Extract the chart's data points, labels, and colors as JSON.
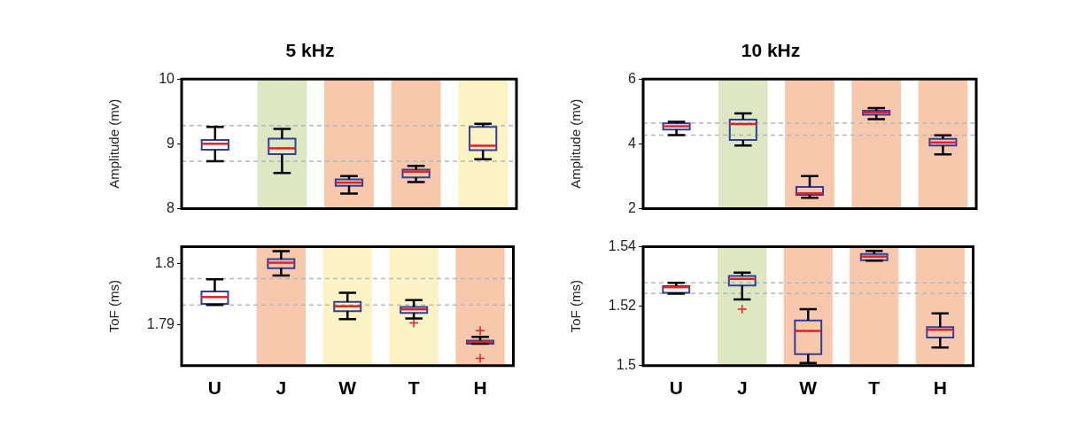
{
  "chart_data": [
    {
      "type": "box",
      "title": "5 kHz",
      "ylabel": "Amplitude (mv)",
      "categories": [
        "U",
        "J",
        "W",
        "T",
        "H"
      ],
      "ylim": [
        8,
        10
      ],
      "yticks": [
        8,
        9,
        10
      ],
      "tick_labels": "y",
      "grid": false,
      "boxes": [
        {
          "low": 8.73,
          "q1": 8.91,
          "median": 9.0,
          "q3": 9.06,
          "high": 9.26
        },
        {
          "low": 8.55,
          "q1": 8.84,
          "median": 8.93,
          "q3": 9.08,
          "high": 9.23
        },
        {
          "low": 8.23,
          "q1": 8.35,
          "median": 8.4,
          "q3": 8.45,
          "high": 8.5
        },
        {
          "low": 8.41,
          "q1": 8.48,
          "median": 8.57,
          "q3": 8.6,
          "high": 8.66
        },
        {
          "low": 8.76,
          "q1": 8.9,
          "median": 8.97,
          "q3": 9.26,
          "high": 9.31
        }
      ],
      "ref_lines": [
        {
          "axis": "y",
          "value": 9.28,
          "color": "#b4b8bc",
          "line_style": "dashed"
        },
        {
          "axis": "y",
          "value": 8.73,
          "color": "#b4b8bc",
          "line_style": "dashed"
        }
      ],
      "bands": [
        {
          "axis": "x",
          "from": "J",
          "to": "J",
          "color": "#dde7c2"
        },
        {
          "axis": "x",
          "from": "W",
          "to": "W",
          "color": "#f7c8ab"
        },
        {
          "axis": "x",
          "from": "T",
          "to": "T",
          "color": "#f7c8ab"
        },
        {
          "axis": "x",
          "from": "H",
          "to": "H",
          "color": "#fbf3c4"
        }
      ]
    },
    {
      "type": "box",
      "title": "10 kHz",
      "ylabel": "Amplitude (mv)",
      "categories": [
        "U",
        "J",
        "W",
        "T",
        "H"
      ],
      "ylim": [
        2,
        6
      ],
      "yticks": [
        2,
        4,
        6
      ],
      "tick_labels": "y",
      "grid": false,
      "boxes": [
        {
          "low": 4.27,
          "q1": 4.44,
          "median": 4.54,
          "q3": 4.63,
          "high": 4.68
        },
        {
          "low": 3.95,
          "q1": 4.12,
          "median": 4.61,
          "q3": 4.75,
          "high": 4.94
        },
        {
          "low": 2.33,
          "q1": 2.42,
          "median": 2.47,
          "q3": 2.67,
          "high": 3.0
        },
        {
          "low": 4.76,
          "q1": 4.9,
          "median": 4.97,
          "q3": 5.02,
          "high": 5.1
        },
        {
          "low": 3.67,
          "q1": 3.95,
          "median": 4.04,
          "q3": 4.15,
          "high": 4.26
        }
      ],
      "ref_lines": [
        {
          "axis": "y",
          "value": 4.64,
          "color": "#b4b8bc",
          "line_style": "dashed"
        },
        {
          "axis": "y",
          "value": 4.27,
          "color": "#b4b8bc",
          "line_style": "dashed"
        }
      ],
      "bands": [
        {
          "axis": "x",
          "from": "J",
          "to": "J",
          "color": "#dde7c2"
        },
        {
          "axis": "x",
          "from": "W",
          "to": "W",
          "color": "#f7c8ab"
        },
        {
          "axis": "x",
          "from": "T",
          "to": "T",
          "color": "#f7c8ab"
        },
        {
          "axis": "x",
          "from": "H",
          "to": "H",
          "color": "#f7c8ab"
        }
      ]
    },
    {
      "type": "box",
      "ylabel": "ToF (ms)",
      "categories": [
        "U",
        "J",
        "W",
        "T",
        "H"
      ],
      "ylim": [
        1.7833,
        1.8027
      ],
      "yticks": [
        1.79,
        1.8
      ],
      "grid": false,
      "boxes": [
        {
          "low": 1.7932,
          "q1": 1.7934,
          "median": 1.7945,
          "q3": 1.7954,
          "high": 1.7974
        },
        {
          "low": 1.798,
          "q1": 1.7992,
          "median": 1.8001,
          "q3": 1.8007,
          "high": 1.802
        },
        {
          "low": 1.7909,
          "q1": 1.7922,
          "median": 1.793,
          "q3": 1.7937,
          "high": 1.7952
        },
        {
          "low": 1.791,
          "q1": 1.7919,
          "median": 1.7925,
          "q3": 1.7929,
          "high": 1.794,
          "outliers": [
            1.7903
          ]
        },
        {
          "low": 1.7869,
          "q1": 1.7869,
          "median": 1.7872,
          "q3": 1.7874,
          "high": 1.788,
          "outliers": [
            1.789,
            1.7845
          ]
        }
      ],
      "ref_lines": [
        {
          "axis": "y",
          "value": 1.7975,
          "color": "#b4b8bc",
          "line_style": "dashed"
        },
        {
          "axis": "y",
          "value": 1.7932,
          "color": "#b4b8bc",
          "line_style": "dashed"
        }
      ],
      "bands": [
        {
          "axis": "x",
          "from": "J",
          "to": "J",
          "color": "#f7c8ab"
        },
        {
          "axis": "x",
          "from": "W",
          "to": "W",
          "color": "#fbf3c4"
        },
        {
          "axis": "x",
          "from": "T",
          "to": "T",
          "color": "#fbf3c4"
        },
        {
          "axis": "x",
          "from": "H",
          "to": "H",
          "color": "#f7c8ab"
        }
      ]
    },
    {
      "type": "box",
      "ylabel": "ToF (ms)",
      "categories": [
        "U",
        "J",
        "W",
        "T",
        "H"
      ],
      "ylim": [
        1.5,
        1.54
      ],
      "yticks": [
        1.5,
        1.52,
        1.54
      ],
      "grid": false,
      "boxes": [
        {
          "low": 1.5242,
          "q1": 1.5245,
          "median": 1.5264,
          "q3": 1.5268,
          "high": 1.5279
        },
        {
          "low": 1.5223,
          "q1": 1.527,
          "median": 1.5292,
          "q3": 1.5302,
          "high": 1.5313,
          "outliers": [
            1.519
          ]
        },
        {
          "low": 1.5009,
          "q1": 1.5039,
          "median": 1.5117,
          "q3": 1.5152,
          "high": 1.519
        },
        {
          "low": 1.5353,
          "q1": 1.5355,
          "median": 1.5367,
          "q3": 1.5376,
          "high": 1.5386
        },
        {
          "low": 1.5061,
          "q1": 1.5095,
          "median": 1.5121,
          "q3": 1.513,
          "high": 1.5176
        }
      ],
      "ref_lines": [
        {
          "axis": "y",
          "value": 1.5279,
          "color": "#b4b8bc",
          "line_style": "dashed"
        },
        {
          "axis": "y",
          "value": 1.5243,
          "color": "#b4b8bc",
          "line_style": "dashed"
        }
      ],
      "bands": [
        {
          "axis": "x",
          "from": "J",
          "to": "J",
          "color": "#dde7c2"
        },
        {
          "axis": "x",
          "from": "W",
          "to": "W",
          "color": "#f7c8ab"
        },
        {
          "axis": "x",
          "from": "T",
          "to": "T",
          "color": "#f7c8ab"
        },
        {
          "axis": "x",
          "from": "H",
          "to": "H",
          "color": "#f7c8ab"
        }
      ]
    }
  ]
}
